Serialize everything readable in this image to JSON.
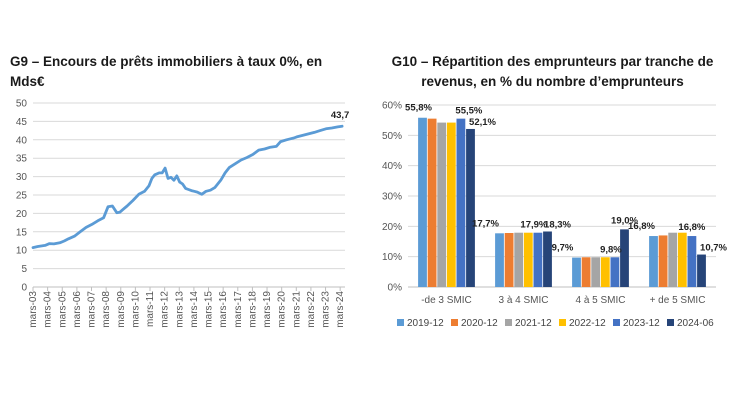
{
  "chart_data": [
    {
      "type": "line",
      "title": "G9 – Encours de prêts immobiliers à taux 0%, en Mds€",
      "ylim": [
        0,
        50
      ],
      "yticks": [
        0,
        5,
        10,
        15,
        20,
        25,
        30,
        35,
        40,
        45,
        50
      ],
      "x_tick_labels": [
        "mars-03",
        "mars-04",
        "mars-05",
        "mars-06",
        "mars-07",
        "mars-08",
        "mars-09",
        "mars-10",
        "mars-11",
        "mars-12",
        "mars-13",
        "mars-14",
        "mars-15",
        "mars-16",
        "mars-17",
        "mars-18",
        "mars-19",
        "mars-20",
        "mars-21",
        "mars-22",
        "mars-23",
        "mars-24"
      ],
      "x_range": [
        2003.17,
        2024.5
      ],
      "grid": true,
      "series_color": "#5b9bd5",
      "end_label": "43,7",
      "x": [
        2003.17,
        2003.5,
        2004.0,
        2004.3,
        2004.6,
        2005.0,
        2005.3,
        2005.6,
        2006.0,
        2006.4,
        2006.8,
        2007.2,
        2007.6,
        2008.0,
        2008.3,
        2008.6,
        2008.9,
        2009.1,
        2009.3,
        2009.6,
        2010.0,
        2010.4,
        2010.8,
        2011.1,
        2011.3,
        2011.5,
        2011.8,
        2012.0,
        2012.2,
        2012.4,
        2012.6,
        2012.8,
        2013.0,
        2013.2,
        2013.4,
        2013.6,
        2013.8,
        2014.0,
        2014.2,
        2014.4,
        2014.7,
        2015.0,
        2015.3,
        2015.6,
        2015.8,
        2016.0,
        2016.3,
        2016.6,
        2017.0,
        2017.4,
        2017.8,
        2018.2,
        2018.6,
        2019.0,
        2019.4,
        2019.8,
        2020.1,
        2020.5,
        2020.8,
        2021.0,
        2021.2,
        2021.6,
        2022.0,
        2022.4,
        2022.8,
        2023.2,
        2023.6,
        2024.0,
        2024.3
      ],
      "y": [
        10.7,
        11.0,
        11.3,
        11.8,
        11.7,
        12.0,
        12.5,
        13.1,
        13.8,
        15.0,
        16.2,
        17.0,
        18.0,
        18.8,
        21.8,
        22.0,
        20.2,
        20.3,
        21.0,
        22.0,
        23.5,
        25.2,
        26.0,
        27.5,
        29.5,
        30.5,
        31.0,
        31.0,
        32.3,
        29.5,
        29.8,
        29.0,
        30.2,
        28.5,
        28.0,
        26.8,
        26.5,
        26.2,
        26.0,
        25.8,
        25.2,
        26.0,
        26.3,
        27.0,
        28.0,
        29.0,
        31.0,
        32.5,
        33.5,
        34.5,
        35.2,
        36.0,
        37.2,
        37.5,
        38.0,
        38.2,
        39.5,
        40.0,
        40.3,
        40.5,
        40.8,
        41.2,
        41.6,
        42.0,
        42.5,
        43.0,
        43.2,
        43.5,
        43.7
      ]
    },
    {
      "type": "bar",
      "title": "G10 – Répartition des emprunteurs par tranche de revenus, en % du nombre d’emprunteurs",
      "ylim": [
        0,
        60
      ],
      "yticks": [
        "0%",
        "10%",
        "20%",
        "30%",
        "40%",
        "50%",
        "60%"
      ],
      "categories": [
        "-de 3 SMIC",
        "3 à 4 SMIC",
        "4 à 5 SMIC",
        "+ de 5 SMIC"
      ],
      "series": [
        {
          "name": "2019-12",
          "color": "#5b9bd5",
          "values": [
            55.8,
            17.7,
            9.7,
            16.8
          ]
        },
        {
          "name": "2020-12",
          "color": "#ed7d31",
          "values": [
            55.5,
            17.8,
            9.8,
            17.0
          ]
        },
        {
          "name": "2021-12",
          "color": "#a5a5a5",
          "values": [
            54.2,
            17.9,
            9.8,
            17.9
          ]
        },
        {
          "name": "2022-12",
          "color": "#ffc000",
          "values": [
            54.2,
            17.9,
            9.8,
            17.9
          ]
        },
        {
          "name": "2023-12",
          "color": "#4472c4",
          "values": [
            55.5,
            17.9,
            9.8,
            16.8
          ]
        },
        {
          "name": "2024-06",
          "color": "#264478",
          "values": [
            52.1,
            18.3,
            19.0,
            10.7
          ]
        }
      ],
      "data_labels": [
        {
          "category": 0,
          "series": 0,
          "text": "55,8%"
        },
        {
          "category": 0,
          "series": 4,
          "text": "55,5%"
        },
        {
          "category": 0,
          "series": 5,
          "text": "52,1%"
        },
        {
          "category": 1,
          "series": 0,
          "text": "17,7%"
        },
        {
          "category": 1,
          "series": 4,
          "text": "17,9%"
        },
        {
          "category": 1,
          "series": 5,
          "text": "18,3%"
        },
        {
          "category": 2,
          "series": 0,
          "text": "9,7%"
        },
        {
          "category": 2,
          "series": 4,
          "text": "9,8%"
        },
        {
          "category": 2,
          "series": 5,
          "text": "19,0%"
        },
        {
          "category": 3,
          "series": 0,
          "text": "16,8%"
        },
        {
          "category": 3,
          "series": 4,
          "text": "16,8%"
        },
        {
          "category": 3,
          "series": 5,
          "text": "10,7%"
        }
      ],
      "legend_position": "bottom"
    }
  ]
}
